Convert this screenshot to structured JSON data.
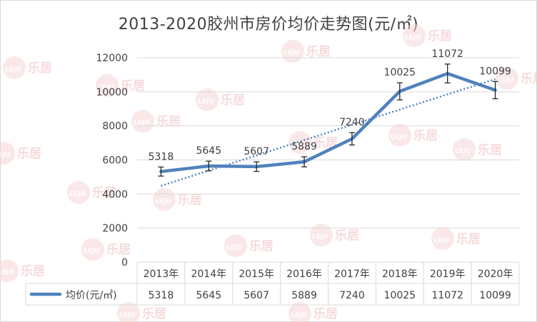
{
  "watermark": {
    "logo_text": "LEJU",
    "brand_text": "乐居"
  },
  "colors": {
    "series": "#4f81bd",
    "trend": "#4f81bd",
    "grid": "#d9d9d9",
    "text": "#404040",
    "error_bar": "#262626"
  },
  "chart_data": {
    "type": "line",
    "title": "2013-2020胶州市房价均价走势图(元/㎡)",
    "categories": [
      "2013年",
      "2014年",
      "2015年",
      "2016年",
      "2017年",
      "2018年",
      "2019年",
      "2020年"
    ],
    "series": [
      {
        "name": "均价(元/㎡)",
        "values": [
          5318,
          5645,
          5607,
          5889,
          7240,
          10025,
          11072,
          10099
        ]
      }
    ],
    "data_labels": [
      "5318",
      "5645",
      "5607",
      "5889",
      "7240",
      "10025",
      "11072",
      "10099"
    ],
    "y_ticks": [
      "0",
      "2000",
      "4000",
      "6000",
      "8000",
      "10000",
      "12000"
    ],
    "ylim": [
      0,
      12000
    ],
    "error_bars": "±5%",
    "trendline": "linear, dotted",
    "grid": true,
    "legend": "data-table-bottom",
    "data_table": {
      "row_label": "均价(元/㎡)",
      "values": [
        "5318",
        "5645",
        "5607",
        "5889",
        "7240",
        "10025",
        "11072",
        "10099"
      ]
    }
  }
}
